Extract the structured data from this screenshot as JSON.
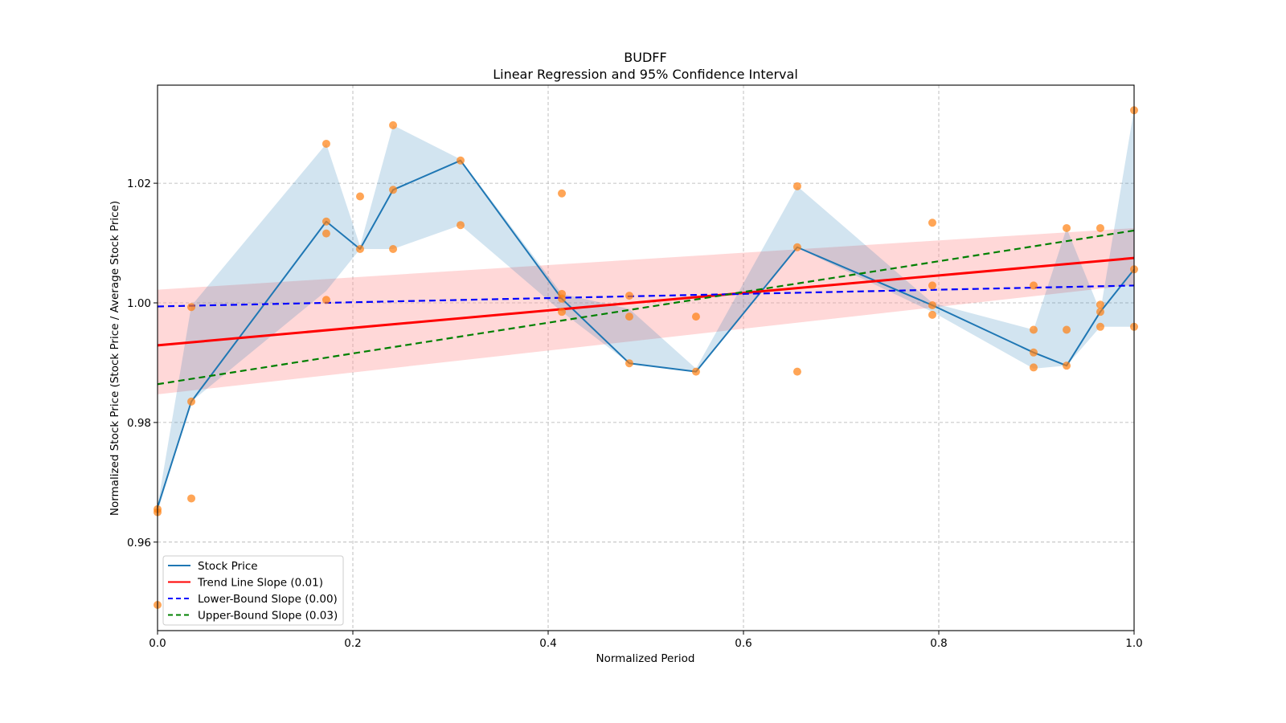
{
  "chart_data": {
    "type": "line",
    "title": "BUDFF",
    "subtitle": "Linear Regression and 95% Confidence Interval",
    "xlabel": "Normalized Period",
    "ylabel": "Normalized Stock Price (Stock Price / Average Stock Price)",
    "xlim": [
      0.0,
      1.0
    ],
    "ylim": [
      0.9452,
      1.0364
    ],
    "xticks": [
      0.0,
      0.2,
      0.4,
      0.6,
      0.8,
      1.0
    ],
    "xtick_labels": [
      "0.0",
      "0.2",
      "0.4",
      "0.6",
      "0.8",
      "1.0"
    ],
    "yticks": [
      0.96,
      0.98,
      1.0,
      1.02
    ],
    "ytick_labels": [
      "0.96",
      "0.98",
      "1.00",
      "1.02"
    ],
    "grid": true,
    "legend_position": "bottom-left",
    "legend": [
      {
        "label": "Stock Price",
        "color": "#1f77b4",
        "style": "solid"
      },
      {
        "label": "Trend Line Slope (0.01)",
        "color": "#ff0000",
        "style": "solid"
      },
      {
        "label": "Lower-Bound Slope (0.00)",
        "color": "#0000ff",
        "style": "dashed"
      },
      {
        "label": "Upper-Bound Slope (0.03)",
        "color": "#008000",
        "style": "dashed"
      }
    ],
    "series": [
      {
        "name": "Stock Price",
        "color": "#1f77b4",
        "x": [
          0.0,
          0.0346,
          0.1728,
          0.2074,
          0.2412,
          0.3103,
          0.414,
          0.4831,
          0.5514,
          0.6551,
          0.7934,
          0.8971,
          0.9309,
          0.9654,
          1.0
        ],
        "y": [
          0.9658,
          0.9835,
          1.0136,
          1.009,
          1.0189,
          1.0238,
          1.0007,
          0.9899,
          0.9885,
          1.0093,
          0.9996,
          0.9917,
          0.9895,
          0.9985,
          1.0056
        ]
      },
      {
        "name": "Stock Price CI band",
        "color": "#1f77b4",
        "x": [
          0.0,
          0.0346,
          0.1728,
          0.2074,
          0.2412,
          0.3103,
          0.414,
          0.4831,
          0.5514,
          0.6551,
          0.7934,
          0.8971,
          0.9309,
          0.9654,
          1.0
        ],
        "upper": [
          0.966,
          0.9995,
          1.0266,
          1.0095,
          1.0297,
          1.024,
          1.0015,
          0.999,
          0.989,
          1.0195,
          1.0,
          0.9955,
          1.0125,
          0.9985,
          1.0324
        ],
        "lower": [
          0.965,
          0.9835,
          1.002,
          1.009,
          1.009,
          1.013,
          0.9985,
          0.9899,
          0.9885,
          1.0092,
          0.9985,
          0.989,
          0.9895,
          0.996,
          0.996
        ]
      },
      {
        "name": "Trend Line Slope (0.01)",
        "color": "#ff0000",
        "x": [
          0.0,
          1.0
        ],
        "y": [
          0.9929,
          1.0075
        ]
      },
      {
        "name": "Trend CI band",
        "color": "#ff0000",
        "x": [
          0.0,
          1.0
        ],
        "upper": [
          1.0022,
          1.0125
        ],
        "lower": [
          0.9847,
          1.003
        ]
      },
      {
        "name": "Lower-Bound Slope (0.00)",
        "color": "#0000ff",
        "x": [
          0.0,
          1.0
        ],
        "y": [
          0.9994,
          1.0029
        ]
      },
      {
        "name": "Upper-Bound Slope (0.03)",
        "color": "#008000",
        "x": [
          0.0,
          1.0
        ],
        "y": [
          0.9864,
          1.0121
        ]
      }
    ],
    "scatter": {
      "name": "Observed prices",
      "color": "#ff7f0e",
      "points": [
        [
          0.0,
          0.965
        ],
        [
          0.0,
          0.9655
        ],
        [
          0.0,
          0.9495
        ],
        [
          0.0346,
          0.9993
        ],
        [
          0.0346,
          0.9835
        ],
        [
          0.0346,
          0.9673
        ],
        [
          0.1728,
          1.0266
        ],
        [
          0.1728,
          1.0136
        ],
        [
          0.1728,
          1.0116
        ],
        [
          0.1728,
          1.0005
        ],
        [
          0.2074,
          1.0178
        ],
        [
          0.2074,
          1.009
        ],
        [
          0.2412,
          1.0297
        ],
        [
          0.2412,
          1.0189
        ],
        [
          0.2412,
          1.009
        ],
        [
          0.3103,
          1.0238
        ],
        [
          0.3103,
          1.013
        ],
        [
          0.414,
          1.0183
        ],
        [
          0.414,
          1.0015
        ],
        [
          0.414,
          1.0007
        ],
        [
          0.414,
          0.9985
        ],
        [
          0.4831,
          1.0012
        ],
        [
          0.4831,
          0.9977
        ],
        [
          0.4831,
          0.9899
        ],
        [
          0.5514,
          0.9977
        ],
        [
          0.5514,
          0.9885
        ],
        [
          0.6551,
          1.0195
        ],
        [
          0.6551,
          1.0093
        ],
        [
          0.6551,
          0.9885
        ],
        [
          0.7934,
          1.0134
        ],
        [
          0.7934,
          1.0029
        ],
        [
          0.7934,
          0.9996
        ],
        [
          0.7934,
          0.998
        ],
        [
          0.8971,
          1.0029
        ],
        [
          0.8971,
          0.9955
        ],
        [
          0.8971,
          0.9917
        ],
        [
          0.8971,
          0.9892
        ],
        [
          0.9309,
          1.0125
        ],
        [
          0.9309,
          0.9955
        ],
        [
          0.9309,
          0.9895
        ],
        [
          0.9654,
          1.0125
        ],
        [
          0.9654,
          0.9997
        ],
        [
          0.9654,
          0.9985
        ],
        [
          0.9654,
          0.996
        ],
        [
          1.0,
          1.0322
        ],
        [
          1.0,
          1.0056
        ],
        [
          1.0,
          0.996
        ]
      ]
    }
  }
}
